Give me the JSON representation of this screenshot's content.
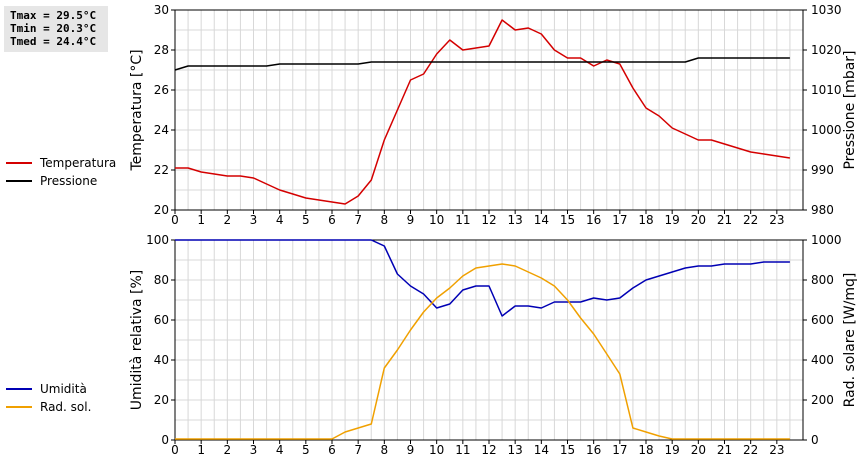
{
  "stats": {
    "tmax": "Tmax = 29.5°C",
    "tmin": "Tmin = 20.3°C",
    "tmed": "Tmed = 24.4°C"
  },
  "colors": {
    "temperature": "#d40000",
    "pressure": "#000000",
    "humidity": "#0000b4",
    "radiation": "#f0a000",
    "grid": "#d8d8d8"
  },
  "legend_top": [
    {
      "label": "Temperatura",
      "color": "#d40000"
    },
    {
      "label": "Pressione",
      "color": "#000000"
    }
  ],
  "legend_bottom": [
    {
      "label": "Umidità",
      "color": "#0000b4"
    },
    {
      "label": "Rad. sol.",
      "color": "#f0a000"
    }
  ],
  "chart_data": [
    {
      "type": "line",
      "grid": true,
      "xlim": [
        0,
        24
      ],
      "xticks": [
        0,
        1,
        2,
        3,
        4,
        5,
        6,
        7,
        8,
        9,
        10,
        11,
        12,
        13,
        14,
        15,
        16,
        17,
        18,
        19,
        20,
        21,
        22,
        23
      ],
      "ylabel_left": "Temperatura [°C]",
      "ylim_left": [
        20,
        30
      ],
      "yticks_left": [
        20,
        22,
        24,
        26,
        28,
        30
      ],
      "ylabel_right": "Pressione [mbar]",
      "ylim_right": [
        980,
        1030
      ],
      "yticks_right": [
        980,
        990,
        1000,
        1010,
        1020,
        1030
      ],
      "series": [
        {
          "name": "Temperatura",
          "axis": "left",
          "x": [
            0,
            0.5,
            1,
            1.5,
            2,
            2.5,
            3,
            3.5,
            4,
            4.5,
            5,
            5.5,
            6,
            6.5,
            7,
            7.5,
            8,
            8.5,
            9,
            9.5,
            10,
            10.5,
            11,
            11.5,
            12,
            12.5,
            13,
            13.5,
            14,
            14.5,
            15,
            15.5,
            16,
            16.5,
            17,
            17.5,
            18,
            18.5,
            19,
            19.5,
            20,
            20.5,
            21,
            21.5,
            22,
            22.5,
            23,
            23.5
          ],
          "values": [
            22.1,
            22.1,
            21.9,
            21.8,
            21.7,
            21.7,
            21.6,
            21.3,
            21.0,
            20.8,
            20.6,
            20.5,
            20.4,
            20.3,
            20.7,
            21.5,
            23.5,
            25.0,
            26.5,
            26.8,
            27.8,
            28.5,
            28.0,
            28.1,
            28.2,
            29.5,
            29.0,
            29.1,
            28.8,
            28.0,
            27.6,
            27.6,
            27.2,
            27.5,
            27.3,
            26.1,
            25.1,
            24.7,
            24.1,
            23.8,
            23.5,
            23.5,
            23.3,
            23.1,
            22.9,
            22.8,
            22.7,
            22.6
          ]
        },
        {
          "name": "Pressione",
          "axis": "right",
          "x": [
            0,
            0.5,
            1,
            1.5,
            2,
            2.5,
            3,
            3.5,
            4,
            4.5,
            5,
            5.5,
            6,
            6.5,
            7,
            7.5,
            8,
            8.5,
            9,
            9.5,
            10,
            10.5,
            11,
            11.5,
            12,
            12.5,
            13,
            13.5,
            14,
            14.5,
            15,
            15.5,
            16,
            16.5,
            17,
            17.5,
            18,
            18.5,
            19,
            19.5,
            20,
            20.5,
            21,
            21.5,
            22,
            22.5,
            23,
            23.5
          ],
          "values": [
            1015.0,
            1016.0,
            1016.0,
            1016.0,
            1016.0,
            1016.0,
            1016.0,
            1016.0,
            1016.5,
            1016.5,
            1016.5,
            1016.5,
            1016.5,
            1016.5,
            1016.5,
            1017.0,
            1017.0,
            1017.0,
            1017.0,
            1017.0,
            1017.0,
            1017.0,
            1017.0,
            1017.0,
            1017.0,
            1017.0,
            1017.0,
            1017.0,
            1017.0,
            1017.0,
            1017.0,
            1017.0,
            1017.0,
            1017.0,
            1017.0,
            1017.0,
            1017.0,
            1017.0,
            1017.0,
            1017.0,
            1018.0,
            1018.0,
            1018.0,
            1018.0,
            1018.0,
            1018.0,
            1018.0,
            1018.0
          ]
        }
      ]
    },
    {
      "type": "line",
      "grid": true,
      "xlim": [
        0,
        24
      ],
      "xticks": [
        0,
        1,
        2,
        3,
        4,
        5,
        6,
        7,
        8,
        9,
        10,
        11,
        12,
        13,
        14,
        15,
        16,
        17,
        18,
        19,
        20,
        21,
        22,
        23
      ],
      "ylabel_left": "Umidità relativa [%]",
      "ylim_left": [
        0,
        100
      ],
      "yticks_left": [
        0,
        20,
        40,
        60,
        80,
        100
      ],
      "ylabel_right": "Rad. solare [W/mq]",
      "ylim_right": [
        0,
        1000
      ],
      "yticks_right": [
        0,
        200,
        400,
        600,
        800,
        1000
      ],
      "series": [
        {
          "name": "Umidità",
          "axis": "left",
          "x": [
            0,
            0.5,
            1,
            1.5,
            2,
            2.5,
            3,
            3.5,
            4,
            4.5,
            5,
            5.5,
            6,
            6.5,
            7,
            7.5,
            8,
            8.5,
            9,
            9.5,
            10,
            10.5,
            11,
            11.5,
            12,
            12.5,
            13,
            13.5,
            14,
            14.5,
            15,
            15.5,
            16,
            16.5,
            17,
            17.5,
            18,
            18.5,
            19,
            19.5,
            20,
            20.5,
            21,
            21.5,
            22,
            22.5,
            23,
            23.5
          ],
          "values": [
            100,
            100,
            100,
            100,
            100,
            100,
            100,
            100,
            100,
            100,
            100,
            100,
            100,
            100,
            100,
            100,
            97,
            83,
            77,
            73,
            66,
            68,
            75,
            77,
            77,
            62,
            67,
            67,
            66,
            69,
            69,
            69,
            71,
            70,
            71,
            76,
            80,
            82,
            84,
            86,
            87,
            87,
            88,
            88,
            88,
            89,
            89,
            89
          ]
        },
        {
          "name": "Rad. sol.",
          "axis": "right",
          "x": [
            0,
            0.5,
            1,
            1.5,
            2,
            2.5,
            3,
            3.5,
            4,
            4.5,
            5,
            5.5,
            6,
            6.5,
            7,
            7.5,
            8,
            8.5,
            9,
            9.5,
            10,
            10.5,
            11,
            11.5,
            12,
            12.5,
            13,
            13.5,
            14,
            14.5,
            15,
            15.5,
            16,
            16.5,
            17,
            17.5,
            18,
            18.5,
            19,
            19.5,
            20,
            20.5,
            21,
            21.5,
            22,
            22.5,
            23,
            23.5
          ],
          "values": [
            5,
            5,
            5,
            5,
            5,
            5,
            5,
            5,
            5,
            5,
            5,
            5,
            5,
            40,
            60,
            80,
            360,
            450,
            550,
            640,
            710,
            760,
            820,
            860,
            870,
            880,
            870,
            840,
            810,
            770,
            700,
            610,
            530,
            430,
            330,
            60,
            40,
            20,
            5,
            5,
            5,
            5,
            5,
            5,
            5,
            5,
            5,
            5
          ]
        }
      ]
    }
  ]
}
